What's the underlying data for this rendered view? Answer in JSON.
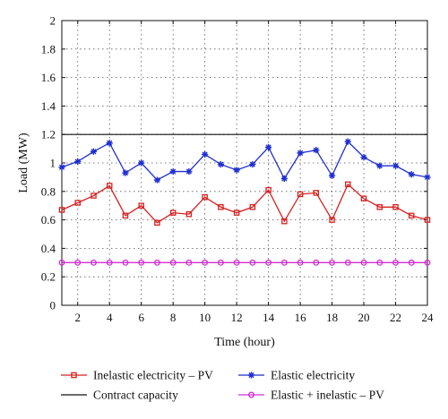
{
  "chart_data": {
    "type": "line",
    "title": "",
    "xlabel": "Time (hour)",
    "ylabel": "Load (MW)",
    "xlim": [
      1,
      24
    ],
    "ylim": [
      0,
      2
    ],
    "grid": true,
    "legend_position": "bottom",
    "x": [
      1,
      2,
      3,
      4,
      5,
      6,
      7,
      8,
      9,
      10,
      11,
      12,
      13,
      14,
      15,
      16,
      17,
      18,
      19,
      20,
      21,
      22,
      23,
      24
    ],
    "xticks": [
      "2",
      "4",
      "6",
      "8",
      "10",
      "12",
      "14",
      "16",
      "18",
      "20",
      "22",
      "24"
    ],
    "yticks": [
      "0",
      "0.2",
      "0.4",
      "0.6",
      "0.8",
      "1",
      "1.2",
      "1.4",
      "1.6",
      "1.8",
      "2"
    ],
    "series": [
      {
        "name": "Inelastic electricity – PV",
        "color": "#d62020",
        "marker": "square",
        "values": [
          0.67,
          0.72,
          0.77,
          0.84,
          0.63,
          0.7,
          0.58,
          0.65,
          0.64,
          0.76,
          0.69,
          0.65,
          0.69,
          0.81,
          0.59,
          0.78,
          0.79,
          0.6,
          0.85,
          0.75,
          0.69,
          0.69,
          0.63,
          0.6
        ]
      },
      {
        "name": "Elastic electricity",
        "color": "#1f2fd0",
        "marker": "asterisk",
        "values": [
          0.97,
          1.01,
          1.08,
          1.14,
          0.93,
          1.0,
          0.88,
          0.94,
          0.94,
          1.06,
          0.99,
          0.95,
          0.99,
          1.11,
          0.89,
          1.07,
          1.09,
          0.91,
          1.15,
          1.04,
          0.98,
          0.98,
          0.92,
          0.9
        ]
      },
      {
        "name": "Contract capacity",
        "color": "#111111",
        "marker": "none",
        "values": [
          1.2,
          1.2,
          1.2,
          1.2,
          1.2,
          1.2,
          1.2,
          1.2,
          1.2,
          1.2,
          1.2,
          1.2,
          1.2,
          1.2,
          1.2,
          1.2,
          1.2,
          1.2,
          1.2,
          1.2,
          1.2,
          1.2,
          1.2,
          1.2
        ]
      },
      {
        "name": "Elastic + inelastic – PV",
        "color": "#d030d0",
        "marker": "circle",
        "values": [
          0.3,
          0.3,
          0.3,
          0.3,
          0.3,
          0.3,
          0.3,
          0.3,
          0.3,
          0.3,
          0.3,
          0.3,
          0.3,
          0.3,
          0.3,
          0.3,
          0.3,
          0.3,
          0.3,
          0.3,
          0.3,
          0.3,
          0.3,
          0.3
        ]
      }
    ]
  }
}
